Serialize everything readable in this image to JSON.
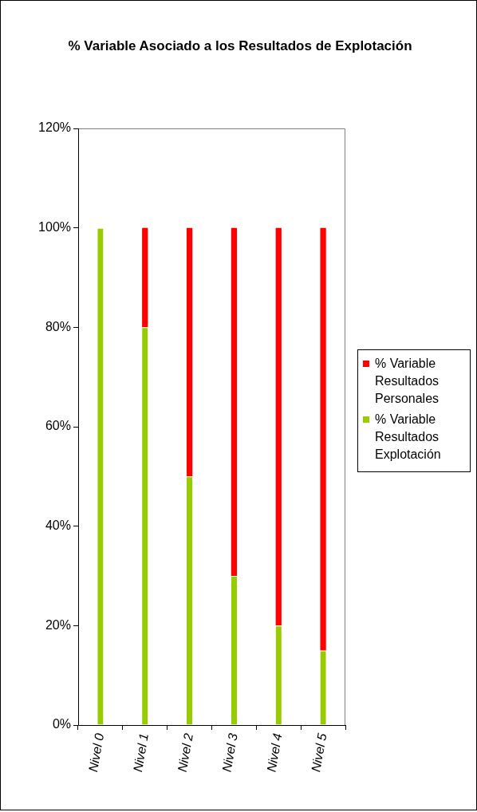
{
  "chart_data": {
    "type": "bar",
    "title": "% Variable Asociado a los Resultados de Explotación",
    "categories": [
      "Nivel 0",
      "Nivel 1",
      "Nivel 2",
      "Nivel 3",
      "Nivel 4",
      "Nivel 5"
    ],
    "series": [
      {
        "name": "% Variable Resultados Explotación",
        "color": "#99cc00",
        "values": [
          100,
          80,
          50,
          30,
          20,
          15
        ]
      },
      {
        "name": "% Variable Resultados Personales",
        "color": "#ff0000",
        "values": [
          0,
          20,
          50,
          70,
          80,
          85
        ]
      }
    ],
    "stacked": true,
    "ylim": [
      0,
      120
    ],
    "yticks": [
      {
        "value": 0,
        "label": "0%"
      },
      {
        "value": 20,
        "label": "20%"
      },
      {
        "value": 40,
        "label": "40%"
      },
      {
        "value": 60,
        "label": "60%"
      },
      {
        "value": 80,
        "label": "80%"
      },
      {
        "value": 100,
        "label": "100%"
      },
      {
        "value": 120,
        "label": "120%"
      }
    ],
    "grid": false,
    "legend": "right"
  }
}
